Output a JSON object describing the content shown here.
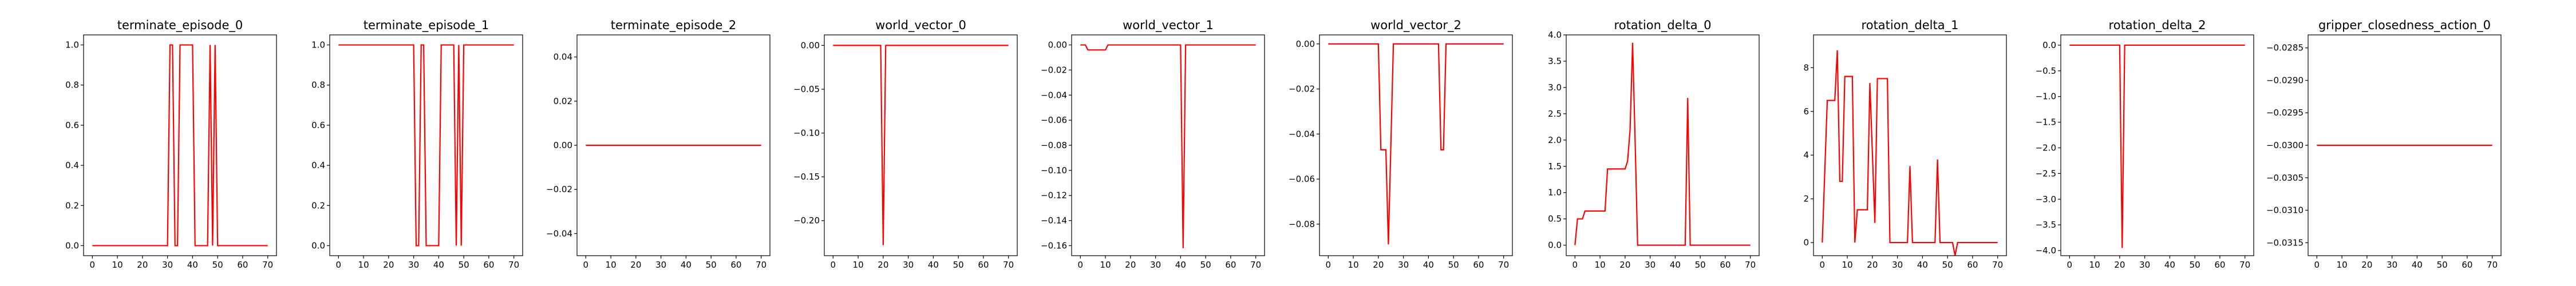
{
  "colors": {
    "line": "#ff0000",
    "axes": "#000000",
    "background": "#ffffff"
  },
  "chart_data": [
    {
      "type": "line",
      "title": "terminate_episode_0",
      "grid": false,
      "xlim": [
        -3.5,
        73.5
      ],
      "ylim": [
        -0.05,
        1.05
      ],
      "xticks": [
        0,
        10,
        20,
        30,
        40,
        50,
        60,
        70
      ],
      "yticks": [
        0.0,
        0.2,
        0.4,
        0.6,
        0.8,
        1.0
      ],
      "ytick_labels": [
        "0.0",
        "0.2",
        "0.4",
        "0.6",
        "0.8",
        "1.0"
      ],
      "x": [
        0,
        30,
        31,
        32,
        33,
        34,
        35,
        40,
        41,
        46,
        47,
        48,
        49,
        50,
        70
      ],
      "y": [
        0,
        0,
        1,
        1,
        0,
        0,
        1,
        1,
        0,
        0,
        1,
        0,
        1,
        0,
        0
      ]
    },
    {
      "type": "line",
      "title": "terminate_episode_1",
      "grid": false,
      "xlim": [
        -3.5,
        73.5
      ],
      "ylim": [
        -0.05,
        1.05
      ],
      "xticks": [
        0,
        10,
        20,
        30,
        40,
        50,
        60,
        70
      ],
      "yticks": [
        0.0,
        0.2,
        0.4,
        0.6,
        0.8,
        1.0
      ],
      "ytick_labels": [
        "0.0",
        "0.2",
        "0.4",
        "0.6",
        "0.8",
        "1.0"
      ],
      "x": [
        0,
        30,
        31,
        32,
        33,
        34,
        35,
        40,
        41,
        46,
        47,
        48,
        49,
        50,
        70
      ],
      "y": [
        1,
        1,
        0,
        0,
        1,
        1,
        0,
        0,
        1,
        1,
        0,
        1,
        0,
        1,
        1
      ]
    },
    {
      "type": "line",
      "title": "terminate_episode_2",
      "grid": false,
      "xlim": [
        -3.5,
        73.5
      ],
      "ylim": [
        -0.05,
        0.05
      ],
      "xticks": [
        0,
        10,
        20,
        30,
        40,
        50,
        60,
        70
      ],
      "yticks": [
        -0.04,
        -0.02,
        0.0,
        0.02,
        0.04
      ],
      "ytick_labels": [
        "−0.04",
        "−0.02",
        "0.00",
        "0.02",
        "0.04"
      ],
      "x": [
        0,
        70
      ],
      "y": [
        0,
        0
      ]
    },
    {
      "type": "line",
      "title": "world_vector_0",
      "grid": false,
      "xlim": [
        -3.5,
        73.5
      ],
      "ylim": [
        -0.24,
        0.012
      ],
      "xticks": [
        0,
        10,
        20,
        30,
        40,
        50,
        60,
        70
      ],
      "yticks": [
        -0.2,
        -0.15,
        -0.1,
        -0.05,
        0.0
      ],
      "ytick_labels": [
        "−0.20",
        "−0.15",
        "−0.10",
        "−0.05",
        "0.00"
      ],
      "x": [
        0,
        19,
        20,
        21,
        70
      ],
      "y": [
        0,
        0,
        -0.228,
        0,
        0
      ]
    },
    {
      "type": "line",
      "title": "world_vector_1",
      "grid": false,
      "xlim": [
        -3.5,
        73.5
      ],
      "ylim": [
        -0.168,
        0.008
      ],
      "xticks": [
        0,
        10,
        20,
        30,
        40,
        50,
        60,
        70
      ],
      "yticks": [
        -0.16,
        -0.14,
        -0.12,
        -0.1,
        -0.08,
        -0.06,
        -0.04,
        -0.02,
        0.0
      ],
      "ytick_labels": [
        "−0.16",
        "−0.14",
        "−0.12",
        "−0.10",
        "−0.08",
        "−0.06",
        "−0.04",
        "−0.02",
        "0.00"
      ],
      "x": [
        0,
        2,
        3,
        10,
        11,
        40,
        41,
        42,
        70
      ],
      "y": [
        0,
        0,
        -0.004,
        -0.004,
        0,
        0,
        -0.162,
        0,
        0
      ]
    },
    {
      "type": "line",
      "title": "world_vector_2",
      "grid": false,
      "xlim": [
        -3.5,
        73.5
      ],
      "ylim": [
        -0.094,
        0.004
      ],
      "xticks": [
        0,
        10,
        20,
        30,
        40,
        50,
        60,
        70
      ],
      "yticks": [
        -0.08,
        -0.06,
        -0.04,
        -0.02,
        0.0
      ],
      "ytick_labels": [
        "−0.08",
        "−0.06",
        "−0.04",
        "−0.02",
        "0.00"
      ],
      "x": [
        0,
        20,
        21,
        23,
        24,
        26,
        44,
        45,
        46,
        47,
        70
      ],
      "y": [
        0,
        0,
        -0.047,
        -0.047,
        -0.089,
        0,
        0,
        -0.047,
        -0.047,
        0,
        0
      ]
    },
    {
      "type": "line",
      "title": "rotation_delta_0",
      "grid": false,
      "xlim": [
        -3.5,
        73.5
      ],
      "ylim": [
        -0.2,
        4.0
      ],
      "xticks": [
        0,
        10,
        20,
        30,
        40,
        50,
        60,
        70
      ],
      "yticks": [
        0.0,
        0.5,
        1.0,
        1.5,
        2.0,
        2.5,
        3.0,
        3.5,
        4.0
      ],
      "ytick_labels": [
        "0.0",
        "0.5",
        "1.0",
        "1.5",
        "2.0",
        "2.5",
        "3.0",
        "3.5",
        "4.0"
      ],
      "x": [
        0,
        1,
        2,
        3,
        4,
        5,
        12,
        13,
        20,
        21,
        22,
        23,
        24,
        25,
        44,
        45,
        46,
        70
      ],
      "y": [
        0,
        0.5,
        0.5,
        0.5,
        0.65,
        0.65,
        0.65,
        1.45,
        1.45,
        1.6,
        2.2,
        3.85,
        2.0,
        0,
        0,
        2.8,
        0,
        0
      ]
    },
    {
      "type": "line",
      "title": "rotation_delta_1",
      "grid": false,
      "xlim": [
        -3.5,
        73.5
      ],
      "ylim": [
        -0.6,
        9.5
      ],
      "xticks": [
        0,
        10,
        20,
        30,
        40,
        50,
        60,
        70
      ],
      "yticks": [
        0,
        2,
        4,
        6,
        8
      ],
      "ytick_labels": [
        "0",
        "2",
        "4",
        "6",
        "8"
      ],
      "x": [
        0,
        2,
        5,
        6,
        7,
        8,
        9,
        12,
        13,
        14,
        18,
        19,
        21,
        22,
        26,
        27,
        28,
        29,
        34,
        35,
        36,
        45,
        46,
        47,
        52,
        53,
        54,
        70
      ],
      "y": [
        0,
        6.5,
        6.5,
        8.8,
        2.8,
        2.8,
        7.6,
        7.6,
        0,
        1.5,
        1.5,
        7.3,
        0.9,
        7.5,
        7.5,
        0,
        0,
        0,
        0,
        3.5,
        0,
        0,
        3.8,
        0,
        0,
        -0.6,
        0,
        0
      ]
    },
    {
      "type": "line",
      "title": "rotation_delta_2",
      "grid": false,
      "xlim": [
        -3.5,
        73.5
      ],
      "ylim": [
        -4.1,
        0.2
      ],
      "xticks": [
        0,
        10,
        20,
        30,
        40,
        50,
        60,
        70
      ],
      "yticks": [
        -4.0,
        -3.5,
        -3.0,
        -2.5,
        -2.0,
        -1.5,
        -1.0,
        -0.5,
        0.0
      ],
      "ytick_labels": [
        "−4.0",
        "−3.5",
        "−3.0",
        "−2.5",
        "−2.0",
        "−1.5",
        "−1.0",
        "−0.5",
        "0.0"
      ],
      "x": [
        0,
        20,
        21,
        22,
        70
      ],
      "y": [
        0,
        0,
        -3.95,
        0,
        0
      ]
    },
    {
      "type": "line",
      "title": "gripper_closedness_action_0",
      "grid": false,
      "xlim": [
        -3.5,
        73.5
      ],
      "ylim": [
        -0.0317,
        -0.0283
      ],
      "xticks": [
        0,
        10,
        20,
        30,
        40,
        50,
        60,
        70
      ],
      "yticks": [
        -0.0315,
        -0.031,
        -0.0305,
        -0.03,
        -0.0295,
        -0.029,
        -0.0285
      ],
      "ytick_labels": [
        "−0.0315",
        "−0.0310",
        "−0.0305",
        "−0.0300",
        "−0.0295",
        "−0.0290",
        "−0.0285"
      ],
      "x": [
        0,
        70
      ],
      "y": [
        -0.03,
        -0.03
      ]
    }
  ]
}
